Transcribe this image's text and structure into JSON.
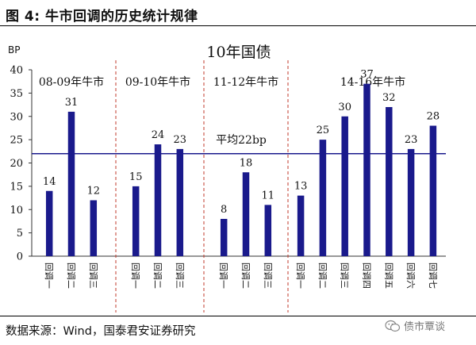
{
  "figure": {
    "title": "图  4:  牛市回调的历史统计规律",
    "source": "数据来源：Wind，国泰君安证券研究",
    "watermark": "债市覃谈",
    "watermark_icon": "wechat-icon"
  },
  "chart_data": {
    "type": "bar",
    "title": "10年国债",
    "ylabel": "BP",
    "ylim": [
      0,
      40
    ],
    "yticks": [
      0,
      5,
      10,
      15,
      20,
      25,
      30,
      35,
      40
    ],
    "bar_color": "#1a1a8c",
    "reference_line": {
      "value": 22,
      "label": "平均22bp",
      "color": "#1a1a8c"
    },
    "divider_color": "#c0392b",
    "groups": [
      {
        "name": "08-09年牛市",
        "categories": [
          "回调一",
          "回调二",
          "回调三"
        ],
        "values": [
          14,
          31,
          12
        ]
      },
      {
        "name": "09-10年牛市",
        "categories": [
          "回调一",
          "回调二",
          "回调三"
        ],
        "values": [
          15,
          24,
          23
        ]
      },
      {
        "name": "11-12年牛市",
        "categories": [
          "回调一",
          "回调二",
          "回调三"
        ],
        "values": [
          8,
          18,
          11
        ]
      },
      {
        "name": "14-16年牛市",
        "categories": [
          "回调一",
          "回调二",
          "回调三",
          "回调四",
          "回调五",
          "回调六",
          "回调七"
        ],
        "values": [
          13,
          25,
          30,
          37,
          32,
          23,
          28
        ]
      }
    ]
  }
}
